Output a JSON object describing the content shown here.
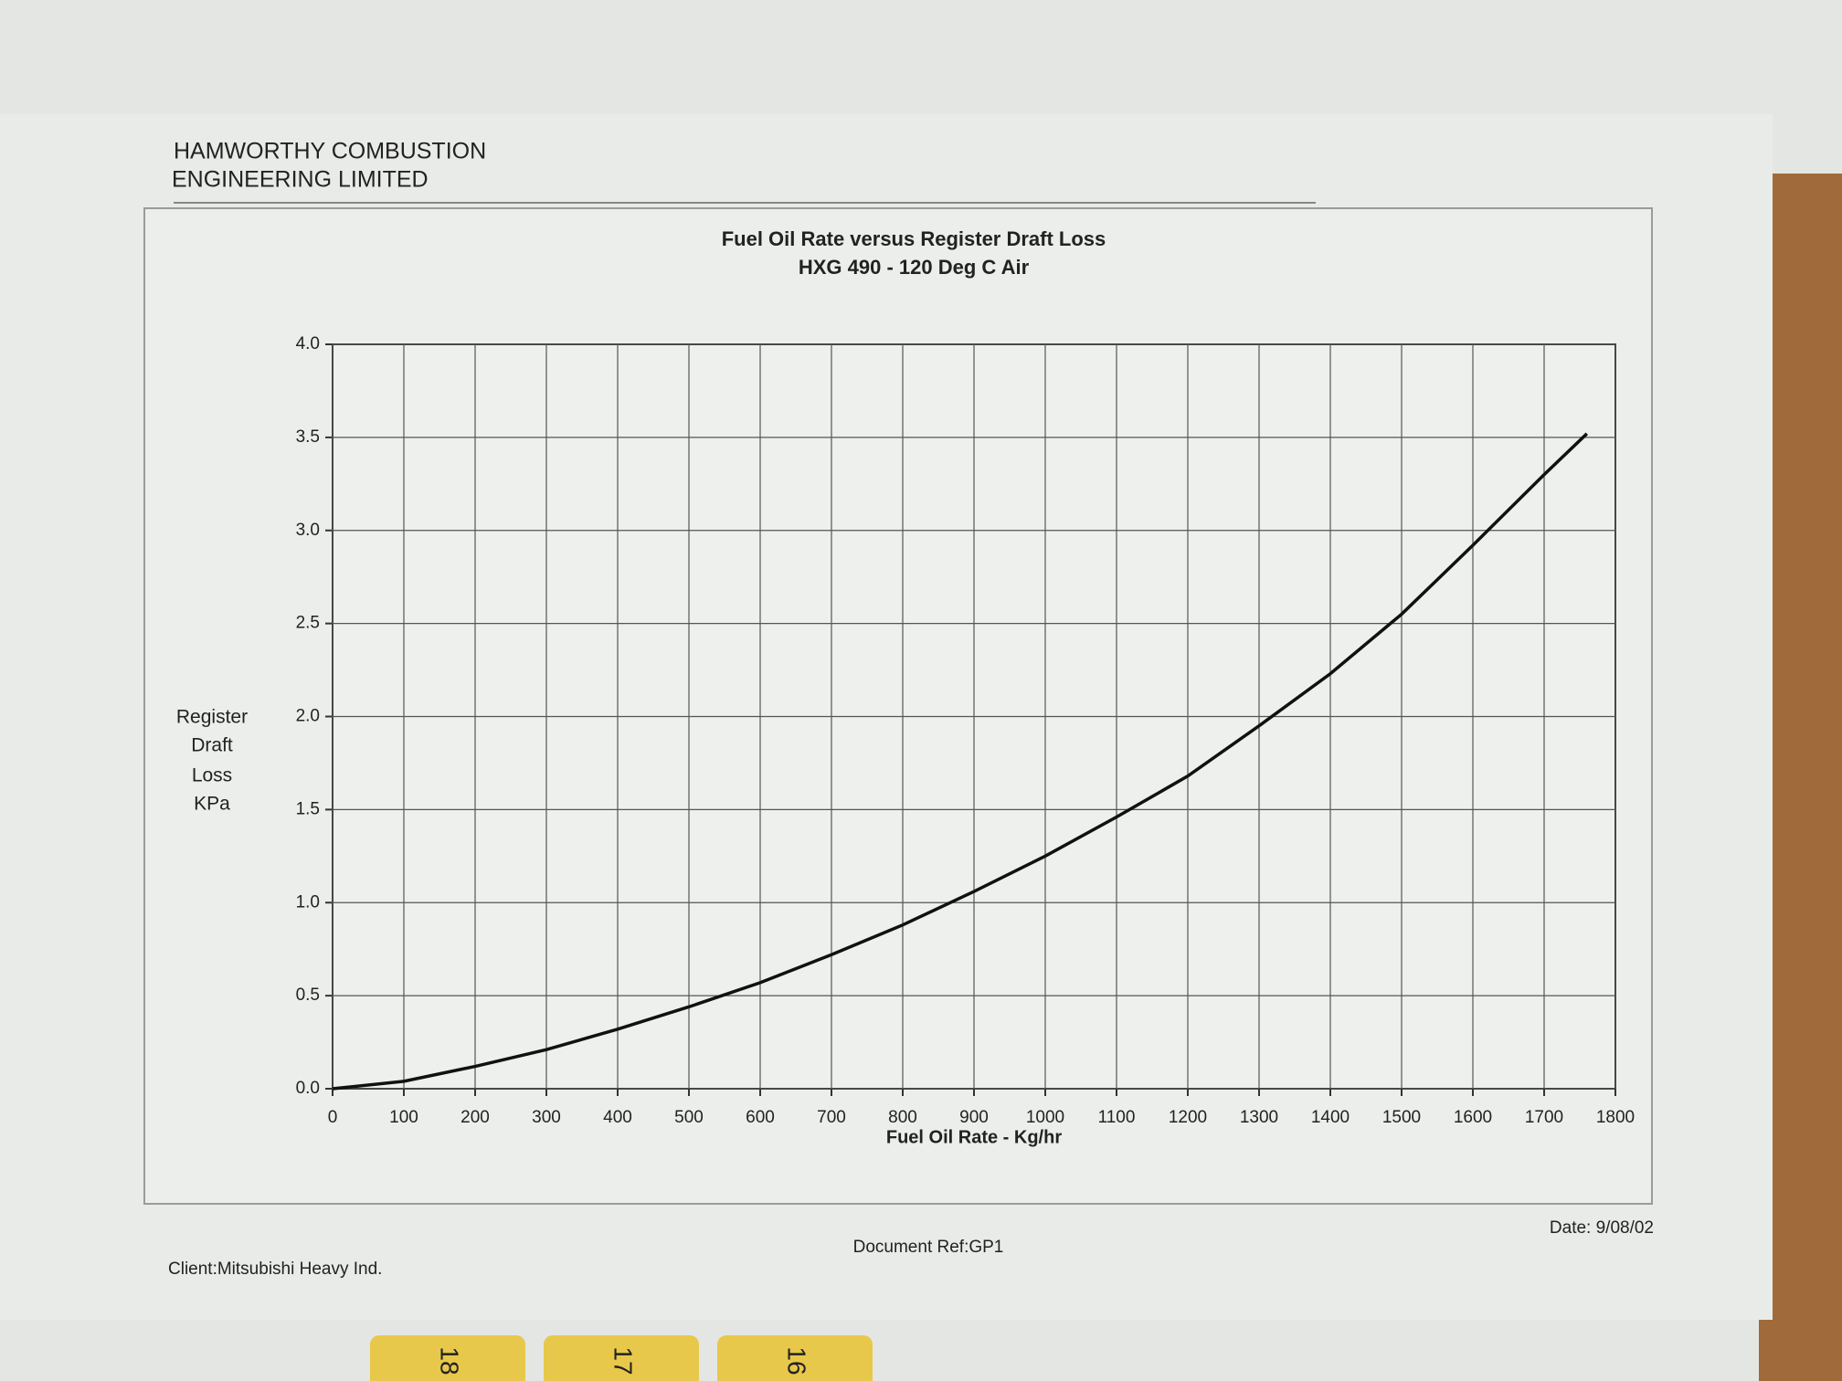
{
  "header": {
    "company": [
      "HAMWORTHY COMBUSTION",
      "ENGINEERING LIMITED"
    ]
  },
  "chart_data": {
    "type": "line",
    "title": "Fuel Oil Rate versus Register Draft Loss",
    "subtitle": "HXG 490 - 120 Deg C Air",
    "xlabel": "Fuel Oil Rate - Kg/hr",
    "ylabel": [
      "Register",
      "Draft",
      "Loss",
      "KPa"
    ],
    "x": [
      0,
      100,
      200,
      300,
      400,
      500,
      600,
      700,
      800,
      900,
      1000,
      1100,
      1200,
      1300,
      1400,
      1500,
      1600,
      1700,
      1760
    ],
    "series": [
      {
        "color": "#111111",
        "values": [
          0,
          0.04,
          0.12,
          0.21,
          0.32,
          0.44,
          0.57,
          0.72,
          0.88,
          1.06,
          1.25,
          1.46,
          1.68,
          1.95,
          2.23,
          2.55,
          2.92,
          3.3,
          3.52
        ]
      }
    ],
    "xlim": [
      0,
      1800
    ],
    "xticks": [
      0,
      100,
      200,
      300,
      400,
      500,
      600,
      700,
      800,
      900,
      1000,
      1100,
      1200,
      1300,
      1400,
      1500,
      1600,
      1700,
      1800
    ],
    "ylim": [
      0,
      4
    ],
    "yticks": [
      {
        "value": 0,
        "label": "0.0"
      },
      {
        "value": 0.5,
        "label": "0.5"
      },
      {
        "value": 1,
        "label": "1.0"
      },
      {
        "value": 1.5,
        "label": "1.5"
      },
      {
        "value": 2,
        "label": "2.0"
      },
      {
        "value": 2.5,
        "label": "2.5"
      },
      {
        "value": 3,
        "label": "3.0"
      },
      {
        "value": 3.5,
        "label": "3.5"
      },
      {
        "value": 4,
        "label": "4.0"
      }
    ],
    "grid": true
  },
  "footer": {
    "client": "Client:Mitsubishi Heavy Ind.",
    "document_ref": "Document Ref:GP1",
    "date": "Date: 9/08/02"
  },
  "tabs": [
    "18",
    "17",
    "16"
  ]
}
